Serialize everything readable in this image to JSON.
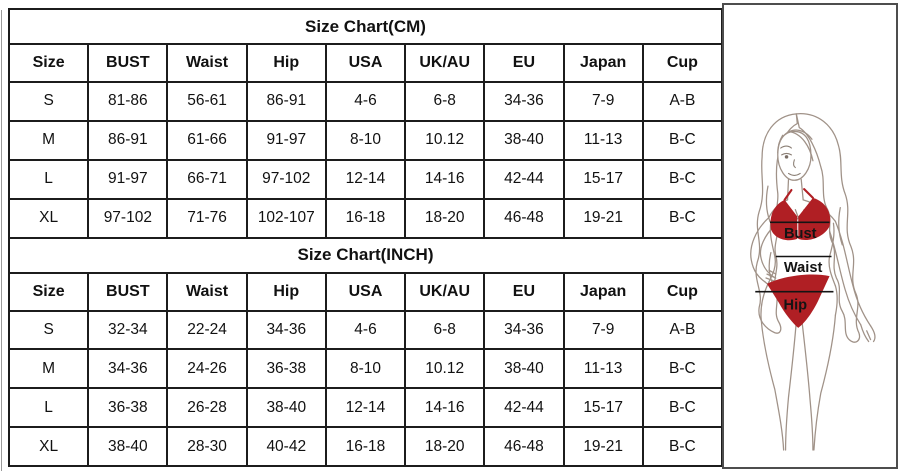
{
  "page": {
    "background": "#ffffff"
  },
  "tables": [
    {
      "title": "Size Chart(CM)",
      "columns": [
        "Size",
        "BUST",
        "Waist",
        "Hip",
        "USA",
        "UK/AU",
        "EU",
        "Japan",
        "Cup"
      ],
      "rows": [
        [
          "S",
          "81-86",
          "56-61",
          "86-91",
          "4-6",
          "6-8",
          "34-36",
          "7-9",
          "A-B"
        ],
        [
          "M",
          "86-91",
          "61-66",
          "91-97",
          "8-10",
          "10.12",
          "38-40",
          "11-13",
          "B-C"
        ],
        [
          "L",
          "91-97",
          "66-71",
          "97-102",
          "12-14",
          "14-16",
          "42-44",
          "15-17",
          "B-C"
        ],
        [
          "XL",
          "97-102",
          "71-76",
          "102-107",
          "16-18",
          "18-20",
          "46-48",
          "19-21",
          "B-C"
        ]
      ]
    },
    {
      "title": "Size Chart(INCH)",
      "columns": [
        "Size",
        "BUST",
        "Waist",
        "Hip",
        "USA",
        "UK/AU",
        "EU",
        "Japan",
        "Cup"
      ],
      "rows": [
        [
          "S",
          "32-34",
          "22-24",
          "34-36",
          "4-6",
          "6-8",
          "34-36",
          "7-9",
          "A-B"
        ],
        [
          "M",
          "34-36",
          "24-26",
          "36-38",
          "8-10",
          "10.12",
          "38-40",
          "11-13",
          "B-C"
        ],
        [
          "L",
          "36-38",
          "26-28",
          "38-40",
          "12-14",
          "14-16",
          "42-44",
          "15-17",
          "B-C"
        ],
        [
          "XL",
          "38-40",
          "28-30",
          "40-42",
          "16-18",
          "18-20",
          "46-48",
          "19-21",
          "B-C"
        ]
      ]
    }
  ],
  "chart_data": [
    {
      "type": "table",
      "title": "Size Chart(CM)",
      "columns": [
        "Size",
        "BUST",
        "Waist",
        "Hip",
        "USA",
        "UK/AU",
        "EU",
        "Japan",
        "Cup"
      ],
      "rows": [
        [
          "S",
          "81-86",
          "56-61",
          "86-91",
          "4-6",
          "6-8",
          "34-36",
          "7-9",
          "A-B"
        ],
        [
          "M",
          "86-91",
          "61-66",
          "91-97",
          "8-10",
          "10.12",
          "38-40",
          "11-13",
          "B-C"
        ],
        [
          "L",
          "91-97",
          "66-71",
          "97-102",
          "12-14",
          "14-16",
          "42-44",
          "15-17",
          "B-C"
        ],
        [
          "XL",
          "97-102",
          "71-76",
          "102-107",
          "16-18",
          "18-20",
          "46-48",
          "19-21",
          "B-C"
        ]
      ]
    },
    {
      "type": "table",
      "title": "Size Chart(INCH)",
      "columns": [
        "Size",
        "BUST",
        "Waist",
        "Hip",
        "USA",
        "UK/AU",
        "EU",
        "Japan",
        "Cup"
      ],
      "rows": [
        [
          "S",
          "32-34",
          "22-24",
          "34-36",
          "4-6",
          "6-8",
          "34-36",
          "7-9",
          "A-B"
        ],
        [
          "M",
          "34-36",
          "24-26",
          "36-38",
          "8-10",
          "10.12",
          "38-40",
          "11-13",
          "B-C"
        ],
        [
          "L",
          "36-38",
          "26-28",
          "38-40",
          "12-14",
          "14-16",
          "42-44",
          "15-17",
          "B-C"
        ],
        [
          "XL",
          "38-40",
          "28-30",
          "40-42",
          "16-18",
          "18-20",
          "46-48",
          "19-21",
          "B-C"
        ]
      ]
    }
  ],
  "figure": {
    "labels": {
      "bust": "Bust",
      "waist": "Waist",
      "hip": "Hip"
    },
    "colors": {
      "bikini": "#b01f24",
      "line_art": "#a09288",
      "measure_line": "#141414",
      "panel_border": "#4d4d4d",
      "table_border": "#1c1c1c",
      "text": "#111111"
    }
  }
}
